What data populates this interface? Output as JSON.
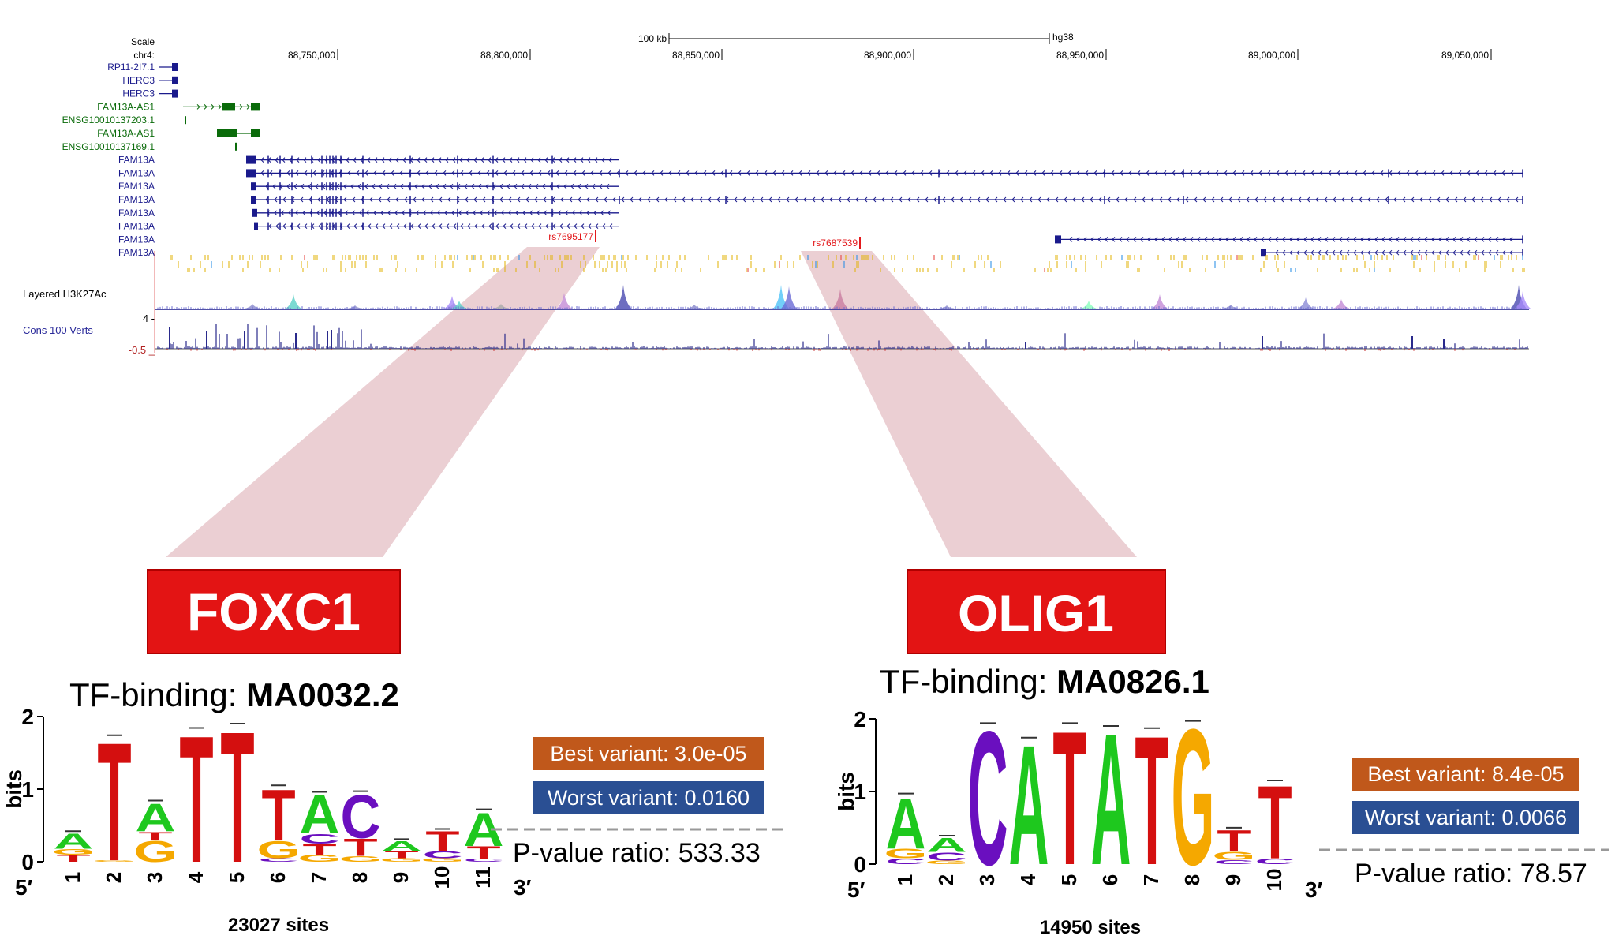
{
  "browser": {
    "scale_label": "Scale",
    "chrom_label": "chr4:",
    "scalebar_label": "100 kb",
    "assembly": "hg38",
    "positions": [
      "88,750,000",
      "88,800,000",
      "88,850,000",
      "88,900,000",
      "88,950,000",
      "89,000,000",
      "89,050,000"
    ],
    "tracks": [
      {
        "name": "RP11-2I7.1",
        "color": "#1a1a8c"
      },
      {
        "name": "HERC3",
        "color": "#1a1a8c"
      },
      {
        "name": "HERC3",
        "color": "#1a1a8c"
      },
      {
        "name": "FAM13A-AS1",
        "color": "#0a6b0a"
      },
      {
        "name": "ENSG10010137203.1",
        "color": "#0a6b0a"
      },
      {
        "name": "FAM13A-AS1",
        "color": "#0a6b0a"
      },
      {
        "name": "ENSG10010137169.1",
        "color": "#0a6b0a"
      },
      {
        "name": "FAM13A",
        "color": "#1a1a8c"
      },
      {
        "name": "FAM13A",
        "color": "#1a1a8c"
      },
      {
        "name": "FAM13A",
        "color": "#1a1a8c"
      },
      {
        "name": "FAM13A",
        "color": "#1a1a8c"
      },
      {
        "name": "FAM13A",
        "color": "#1a1a8c"
      },
      {
        "name": "FAM13A",
        "color": "#1a1a8c"
      },
      {
        "name": "FAM13A",
        "color": "#1a1a8c"
      },
      {
        "name": "FAM13A",
        "color": "#1a1a8c"
      }
    ],
    "snps": [
      {
        "id": "rs7695177",
        "color": "#e3191c"
      },
      {
        "id": "rs7687539",
        "color": "#e3191c"
      }
    ],
    "h3k27ac_label": "Layered H3K27Ac",
    "cons_label": "Cons 100 Verts",
    "cons_max": "4 -",
    "cons_min": "-0.5 _"
  },
  "motifs": [
    {
      "tf": "FOXC1",
      "binding_prefix": "TF-binding: ",
      "binding_id": "MA0032.2",
      "sites": "23027 sites",
      "best_variant": "Best variant: 3.0e-05",
      "worst_variant": "Worst variant: 0.0160",
      "pvalue_ratio": "P-value ratio: 533.33",
      "positions": [
        "1",
        "2",
        "3",
        "4",
        "5",
        "6",
        "7",
        "8",
        "9",
        "10",
        "11"
      ]
    },
    {
      "tf": "OLIG1",
      "binding_prefix": "TF-binding: ",
      "binding_id": "MA0826.1",
      "sites": "14950 sites",
      "best_variant": "Best variant: 8.4e-05",
      "worst_variant": "Worst variant: 0.0066",
      "pvalue_ratio": "P-value ratio: 78.57",
      "positions": [
        "1",
        "2",
        "3",
        "4",
        "5",
        "6",
        "7",
        "8",
        "9",
        "10"
      ]
    }
  ],
  "logo_axis": {
    "ylabel": "bits",
    "yticks": [
      "0",
      "1",
      "2"
    ],
    "five_prime": "5′",
    "three_prime": "3′"
  },
  "colors": {
    "tf_box": "#e31414",
    "best": "#c0581b",
    "worst": "#2a4f93",
    "A": "#1ec81e",
    "C": "#6a0fbf",
    "G": "#f5a800",
    "T": "#d40f0f",
    "zoom": "#e8c7cb"
  }
}
